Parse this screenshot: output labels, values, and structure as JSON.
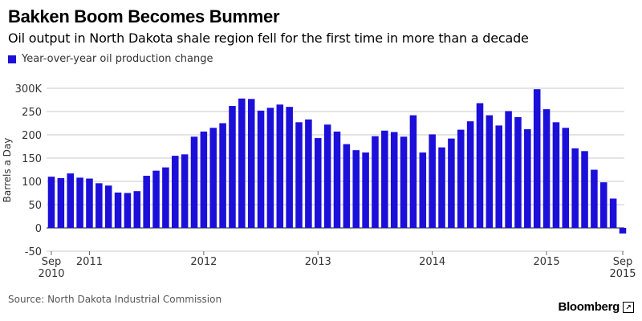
{
  "colors": {
    "bar": "#1c0fd9",
    "grid": "#c8c8c8",
    "zero": "#444444",
    "text": "#333333"
  },
  "brand": {
    "name": "Bloomberg",
    "icon": "bloomberg-logo-icon"
  },
  "source": "Source: North Dakota Industrial Commission",
  "chart_data": {
    "type": "bar",
    "title": "Bakken Boom Becomes Bummer",
    "subtitle": "Oil output in North Dakota shale region fell for the first time in more than a decade",
    "ylabel": "Barrels a Day",
    "xlabel": "",
    "ylim": [
      -50,
      300
    ],
    "yticks": [
      "300K",
      "250",
      "200",
      "150",
      "100",
      "50",
      "0",
      "-50"
    ],
    "ytick_values": [
      300,
      250,
      200,
      150,
      100,
      50,
      0,
      -50
    ],
    "grid": true,
    "legend": "top-left",
    "series": [
      {
        "name": "Year-over-year oil production change",
        "categories": [
          "2010-09",
          "2010-10",
          "2010-11",
          "2010-12",
          "2011-01",
          "2011-02",
          "2011-03",
          "2011-04",
          "2011-05",
          "2011-06",
          "2011-07",
          "2011-08",
          "2011-09",
          "2011-10",
          "2011-11",
          "2011-12",
          "2012-01",
          "2012-02",
          "2012-03",
          "2012-04",
          "2012-05",
          "2012-06",
          "2012-07",
          "2012-08",
          "2012-09",
          "2012-10",
          "2012-11",
          "2012-12",
          "2013-01",
          "2013-02",
          "2013-03",
          "2013-04",
          "2013-05",
          "2013-06",
          "2013-07",
          "2013-08",
          "2013-09",
          "2013-10",
          "2013-11",
          "2013-12",
          "2014-01",
          "2014-02",
          "2014-03",
          "2014-04",
          "2014-05",
          "2014-06",
          "2014-07",
          "2014-08",
          "2014-09",
          "2014-10",
          "2014-11",
          "2014-12",
          "2015-01",
          "2015-02",
          "2015-03",
          "2015-04",
          "2015-05",
          "2015-06",
          "2015-07",
          "2015-08",
          "2015-09"
        ],
        "values": [
          110,
          107,
          117,
          108,
          106,
          96,
          91,
          76,
          75,
          79,
          112,
          123,
          130,
          155,
          158,
          196,
          207,
          215,
          225,
          262,
          278,
          277,
          252,
          258,
          265,
          260,
          227,
          233,
          193,
          222,
          207,
          180,
          167,
          162,
          197,
          209,
          206,
          196,
          242,
          162,
          201,
          173,
          192,
          211,
          229,
          268,
          242,
          220,
          251,
          238,
          212,
          298,
          255,
          227,
          215,
          171,
          165,
          125,
          98,
          63,
          -12
        ]
      }
    ],
    "x_tick_labels": [
      {
        "at": "2010-09",
        "line1": "Sep",
        "line2": "2010"
      },
      {
        "at": "2011-01",
        "line1": "2011",
        "line2": ""
      },
      {
        "at": "2012-01",
        "line1": "2012",
        "line2": ""
      },
      {
        "at": "2013-01",
        "line1": "2013",
        "line2": ""
      },
      {
        "at": "2014-01",
        "line1": "2014",
        "line2": ""
      },
      {
        "at": "2015-01",
        "line1": "2015",
        "line2": ""
      },
      {
        "at": "2015-09",
        "line1": "Sep",
        "line2": "2015"
      }
    ]
  }
}
